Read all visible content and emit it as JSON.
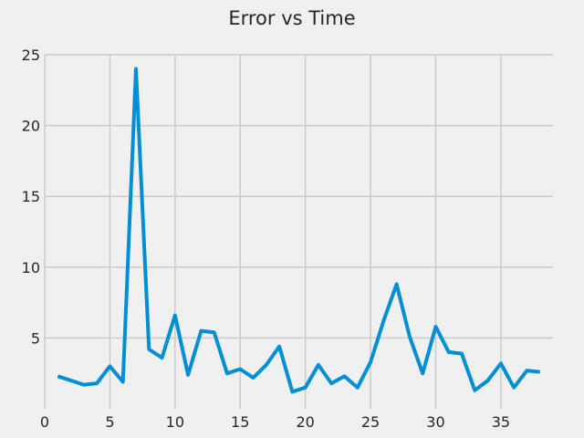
{
  "chart_data": {
    "type": "line",
    "title": "Error vs Time",
    "xlabel": "",
    "ylabel": "",
    "xlim": [
      0,
      39
    ],
    "ylim": [
      0,
      25
    ],
    "x_ticks": [
      0,
      5,
      10,
      15,
      20,
      25,
      30,
      35
    ],
    "y_ticks": [
      5,
      10,
      15,
      20,
      25
    ],
    "grid": true,
    "series": [
      {
        "color": "#008fd5",
        "x": [
          1,
          2,
          3,
          4,
          5,
          6,
          7,
          8,
          9,
          10,
          11,
          12,
          13,
          14,
          15,
          16,
          17,
          18,
          19,
          20,
          21,
          22,
          23,
          24,
          25,
          26,
          27,
          28,
          29,
          30,
          31,
          32,
          33,
          34,
          35,
          36,
          37,
          38
        ],
        "y": [
          2.3,
          2.0,
          1.7,
          1.8,
          3.0,
          1.9,
          24.0,
          4.2,
          3.6,
          6.6,
          2.4,
          5.5,
          5.4,
          2.5,
          2.8,
          2.2,
          3.1,
          4.4,
          1.2,
          1.5,
          3.1,
          1.8,
          2.3,
          1.5,
          3.3,
          6.2,
          8.8,
          5.1,
          2.5,
          5.8,
          4.0,
          3.9,
          1.3,
          2.0,
          3.2,
          1.5,
          2.7,
          2.6
        ]
      }
    ]
  }
}
